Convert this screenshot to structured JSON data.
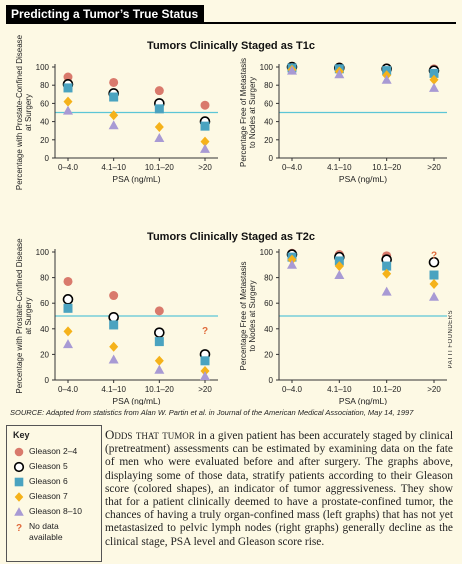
{
  "header": {
    "title": "Predicting a Tumor’s True Status"
  },
  "groups": [
    {
      "title": "Tumors Clinically Staged as T1c"
    },
    {
      "title": "Tumors Clinically Staged as T2c"
    }
  ],
  "chart_data": [
    {
      "type": "scatter",
      "title": "Tumors Clinically Staged as T1c",
      "ylabel": "Percentage with Prostate-Confined Disease at Surgery",
      "xlabel": "PSA (ng/mL)",
      "categories": [
        "0–4.0",
        "4.1–10",
        "10.1–20",
        ">20"
      ],
      "ylim": [
        0,
        100
      ],
      "yticks": [
        "0",
        "20",
        "40",
        "60",
        "80",
        "100"
      ],
      "reference_line": 50,
      "series": [
        {
          "name": "Gleason 2–4",
          "values": [
            89,
            83,
            74,
            58
          ]
        },
        {
          "name": "Gleason 5",
          "values": [
            81,
            71,
            60,
            40
          ]
        },
        {
          "name": "Gleason 6",
          "values": [
            77,
            67,
            54,
            35
          ]
        },
        {
          "name": "Gleason 7",
          "values": [
            62,
            47,
            34,
            18
          ]
        },
        {
          "name": "Gleason 8–10",
          "values": [
            52,
            36,
            22,
            10
          ]
        }
      ],
      "no_data": []
    },
    {
      "type": "scatter",
      "title": "Tumors Clinically Staged as T1c",
      "ylabel": "Percentage Free of Metastasis to Nodes at Surgery",
      "xlabel": "PSA (ng/mL)",
      "categories": [
        "0–4.0",
        "4.1–10",
        "10.1–20",
        ">20"
      ],
      "ylim": [
        0,
        100
      ],
      "yticks": [
        "0",
        "20",
        "40",
        "60",
        "80",
        "100"
      ],
      "reference_line": 50,
      "series": [
        {
          "name": "Gleason 2–4",
          "values": [
            100,
            100,
            99,
            98
          ]
        },
        {
          "name": "Gleason 5",
          "values": [
            100,
            99,
            98,
            96
          ]
        },
        {
          "name": "Gleason 6",
          "values": [
            99,
            98,
            96,
            93
          ]
        },
        {
          "name": "Gleason 7",
          "values": [
            97,
            95,
            91,
            86
          ]
        },
        {
          "name": "Gleason 8–10",
          "values": [
            96,
            92,
            86,
            77
          ]
        }
      ],
      "no_data": []
    },
    {
      "type": "scatter",
      "title": "Tumors Clinically Staged as T2c",
      "ylabel": "Percentage with Prostate-Confined Disease at Surgery",
      "xlabel": "PSA (ng/mL)",
      "categories": [
        "0–4.0",
        "4.1–10",
        "10.1–20",
        ">20"
      ],
      "ylim": [
        0,
        100
      ],
      "yticks": [
        "0",
        "20",
        "40",
        "60",
        "80",
        "100"
      ],
      "reference_line": 50,
      "series": [
        {
          "name": "Gleason 2–4",
          "values": [
            77,
            66,
            54,
            null
          ]
        },
        {
          "name": "Gleason 5",
          "values": [
            63,
            49,
            37,
            20
          ]
        },
        {
          "name": "Gleason 6",
          "values": [
            56,
            43,
            30,
            15
          ]
        },
        {
          "name": "Gleason 7",
          "values": [
            38,
            26,
            15,
            7
          ]
        },
        {
          "name": "Gleason 8–10",
          "values": [
            28,
            16,
            8,
            3
          ]
        }
      ],
      "no_data": [
        {
          "category": ">20",
          "value": 39,
          "label": "?"
        }
      ]
    },
    {
      "type": "scatter",
      "title": "Tumors Clinically Staged as T2c",
      "ylabel": "Percentage Free of Metastasis to Nodes at Surgery",
      "xlabel": "PSA (ng/mL)",
      "categories": [
        "0–4.0",
        "4.1–10",
        "10.1–20",
        ">20"
      ],
      "ylim": [
        0,
        100
      ],
      "yticks": [
        "0",
        "20",
        "40",
        "60",
        "80",
        "100"
      ],
      "reference_line": 50,
      "series": [
        {
          "name": "Gleason 2–4",
          "values": [
            99,
            98,
            97,
            null
          ]
        },
        {
          "name": "Gleason 5",
          "values": [
            98,
            96,
            94,
            92
          ]
        },
        {
          "name": "Gleason 6",
          "values": [
            96,
            93,
            89,
            82
          ]
        },
        {
          "name": "Gleason 7",
          "values": [
            94,
            89,
            83,
            75
          ]
        },
        {
          "name": "Gleason 8–10",
          "values": [
            90,
            82,
            69,
            65
          ]
        }
      ],
      "no_data": [
        {
          "category": ">20",
          "value": 98,
          "label": "?"
        }
      ]
    }
  ],
  "series_colors": {
    "Gleason 2–4": "#d97a6c",
    "Gleason 5": "#ffffff",
    "Gleason 6": "#4aa3c0",
    "Gleason 7": "#f5b21a",
    "Gleason 8–10": "#a89ad4",
    "reference_line": "#5cc6d6",
    "no_data": "#e06a3a"
  },
  "series_shapes": {
    "Gleason 2–4": "circle",
    "Gleason 5": "ring",
    "Gleason 6": "square",
    "Gleason 7": "diamond",
    "Gleason 8–10": "triangle"
  },
  "source": "SOURCE: Adapted from statistics from Alan W. Partin et al. in Journal of the American Medical Association, May 14, 1997",
  "credit": "PATTI FOUNDERS",
  "key": {
    "title": "Key",
    "items": [
      {
        "label": "Gleason 2–4",
        "shape": "circle",
        "color": "#d97a6c"
      },
      {
        "label": "Gleason 5",
        "shape": "ring",
        "color": "#ffffff"
      },
      {
        "label": "Gleason 6",
        "shape": "square",
        "color": "#4aa3c0"
      },
      {
        "label": "Gleason 7",
        "shape": "diamond",
        "color": "#f5b21a"
      },
      {
        "label": "Gleason 8–10",
        "shape": "triangle",
        "color": "#a89ad4"
      },
      {
        "label": "No data",
        "shape": "question",
        "color": "#e06a3a"
      },
      {
        "label": "available",
        "shape": "none",
        "color": ""
      }
    ]
  },
  "caption": {
    "lead": "Odds that tumor",
    "text": " in a given patient has been accurately staged by clinical (pretreatment) assessments can be estimated by examining data on the fate of men who were evaluated before and after surgery. The graphs above, displaying some of those data, stratify patients according to their Gleason score (colored shapes), an indicator of tumor aggressiveness. They show that for a patient clinically deemed to have a prostate-confined tumor, the chances of having a truly organ-confined mass (left graphs) that has not yet metastasized to pelvic lymph nodes (right graphs) generally decline as the clinical stage, PSA level and Gleason score rise."
  }
}
